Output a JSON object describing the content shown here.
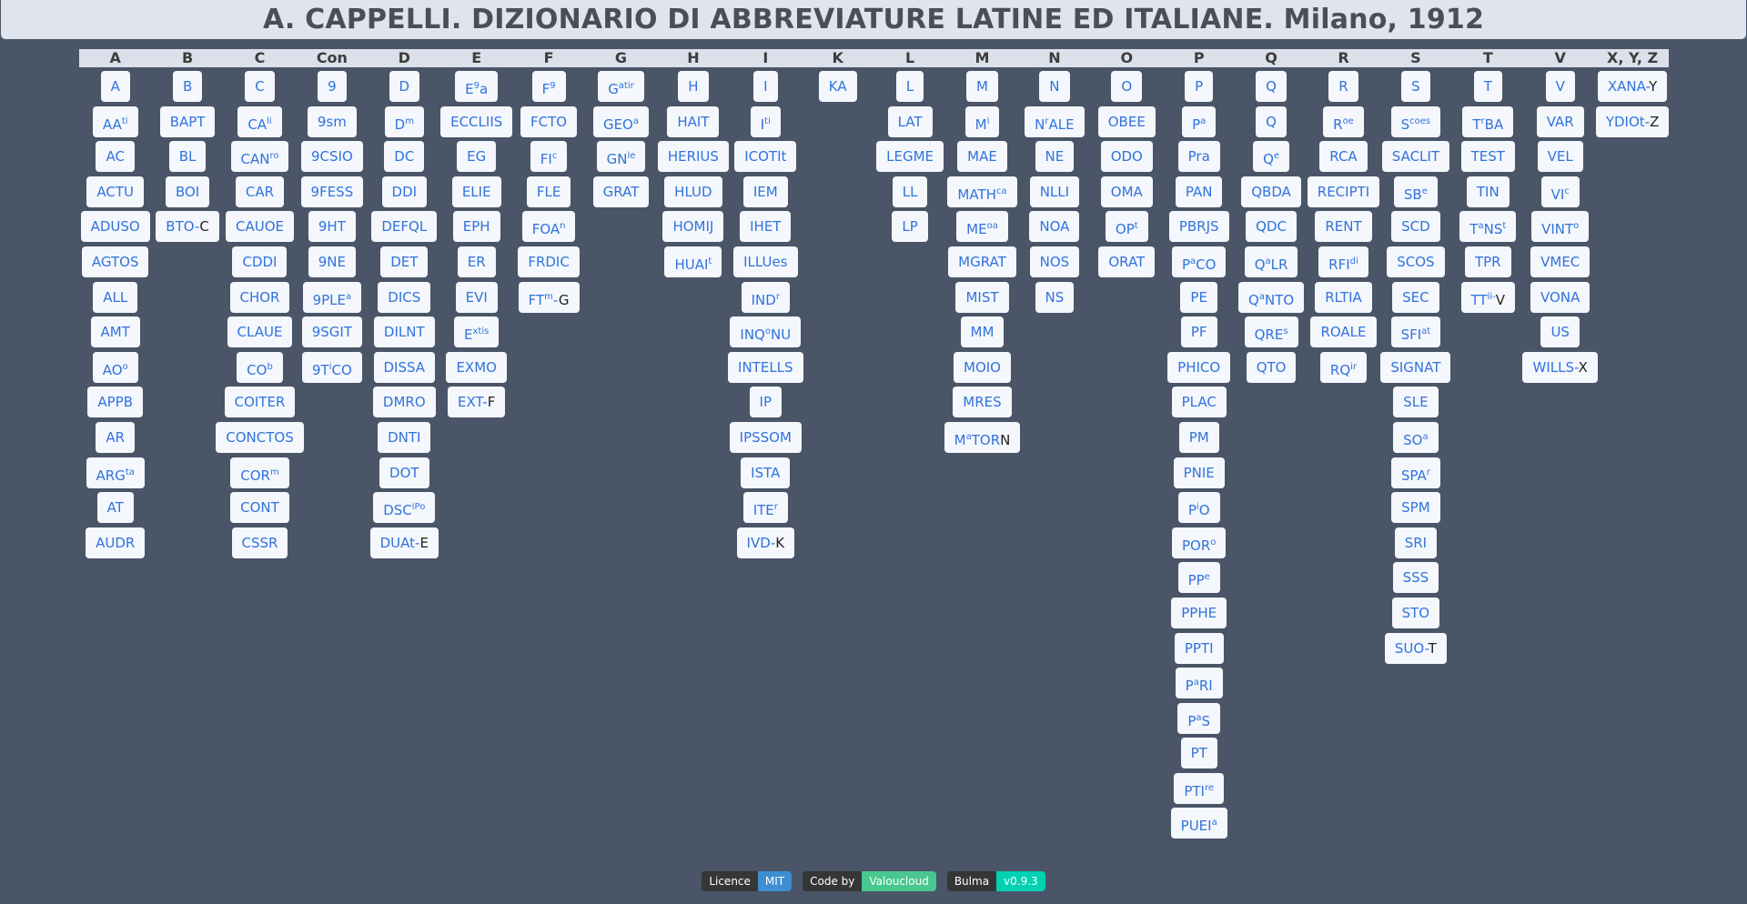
{
  "title": "A. CAPPELLI. DIZIONARIO DI ABBREVIATURE LATINE ED ITALIANE. Milano, 1912",
  "columns": [
    {
      "letter": "A",
      "items": [
        {
          "t": "A"
        },
        {
          "t": "AA",
          "sup": "ti"
        },
        {
          "t": "AC"
        },
        {
          "t": "ACTU"
        },
        {
          "t": "ADUSO"
        },
        {
          "t": "AGTOS"
        },
        {
          "t": "ALL"
        },
        {
          "t": "AMT"
        },
        {
          "t": "AO",
          "sup": "o"
        },
        {
          "t": "APPB"
        },
        {
          "t": "AR"
        },
        {
          "t": "ARG",
          "sup": "ta"
        },
        {
          "t": "AT"
        },
        {
          "t": "AUDR"
        }
      ]
    },
    {
      "letter": "B",
      "items": [
        {
          "t": "B"
        },
        {
          "t": "BAPT"
        },
        {
          "t": "BL"
        },
        {
          "t": "BOI"
        },
        {
          "t": "BTO-",
          "sfx": "C"
        }
      ]
    },
    {
      "letter": "C",
      "items": [
        {
          "t": "C"
        },
        {
          "t": "CA",
          "sup": "li"
        },
        {
          "t": "CAN",
          "sup": "ro"
        },
        {
          "t": "CAR"
        },
        {
          "t": "CAUOE"
        },
        {
          "t": "CDDI"
        },
        {
          "t": "CHOR"
        },
        {
          "t": "CLAUE"
        },
        {
          "t": "CO",
          "sup": "b"
        },
        {
          "t": "COITER"
        },
        {
          "t": "CONCTOS"
        },
        {
          "t": "COR",
          "sup": "m"
        },
        {
          "t": "CONT"
        },
        {
          "t": "CSSR"
        }
      ]
    },
    {
      "letter": "Con",
      "items": [
        {
          "t": "9"
        },
        {
          "t": "9sm"
        },
        {
          "t": "9CSIO"
        },
        {
          "t": "9FESS"
        },
        {
          "t": "9HT"
        },
        {
          "t": "9NE"
        },
        {
          "t": "9PLE",
          "sup": "a"
        },
        {
          "t": "9SGIT"
        },
        {
          "t": "9T",
          "sup": "i",
          "t2": "CO"
        }
      ]
    },
    {
      "letter": "D",
      "items": [
        {
          "t": "D"
        },
        {
          "t": "D",
          "sup": "m"
        },
        {
          "t": "DC"
        },
        {
          "t": "DDI"
        },
        {
          "t": "DEFQL"
        },
        {
          "t": "DET"
        },
        {
          "t": "DICS"
        },
        {
          "t": "DILNT"
        },
        {
          "t": "DISSA"
        },
        {
          "t": "DMRO"
        },
        {
          "t": "DNTI"
        },
        {
          "t": "DOT"
        },
        {
          "t": "DSC",
          "sup": "iPo"
        },
        {
          "t": "DUAt-",
          "sfx": "E"
        }
      ]
    },
    {
      "letter": "E",
      "items": [
        {
          "t": "E",
          "sup": "9",
          "t2": "a"
        },
        {
          "t": "ECCLIIS"
        },
        {
          "t": "EG"
        },
        {
          "t": "ELIE"
        },
        {
          "t": "EPH"
        },
        {
          "t": "ER"
        },
        {
          "t": "EVI"
        },
        {
          "t": "E",
          "sup": "xtis"
        },
        {
          "t": "EXMO"
        },
        {
          "t": "EXT-",
          "sfx": "F"
        }
      ]
    },
    {
      "letter": "F",
      "items": [
        {
          "t": "F",
          "sup": "9"
        },
        {
          "t": "FCTO"
        },
        {
          "t": "FI",
          "sup": "c"
        },
        {
          "t": "FLE"
        },
        {
          "t": "FOA",
          "sup": "n"
        },
        {
          "t": "FRDIC"
        },
        {
          "t": "FT",
          "sup": "m",
          "t2": "-",
          "sfx": "G"
        }
      ]
    },
    {
      "letter": "G",
      "items": [
        {
          "t": "G",
          "sup": "atir"
        },
        {
          "t": "GEO",
          "sup": "a"
        },
        {
          "t": "GN",
          "sup": "le"
        },
        {
          "t": "GRAT"
        }
      ]
    },
    {
      "letter": "H",
      "items": [
        {
          "t": "H"
        },
        {
          "t": "HAIT"
        },
        {
          "t": "HERIUS"
        },
        {
          "t": "HLUD"
        },
        {
          "t": "HOMIJ"
        },
        {
          "t": "HUAI",
          "sup": "t"
        }
      ]
    },
    {
      "letter": "I",
      "items": [
        {
          "t": "I"
        },
        {
          "t": "I",
          "sup": "ti"
        },
        {
          "t": "ICOTIt"
        },
        {
          "t": "IEM"
        },
        {
          "t": "IHET"
        },
        {
          "t": "ILLUes"
        },
        {
          "t": "IND",
          "sup": "r"
        },
        {
          "t": "INQ",
          "sup": "o",
          "t2": "NU"
        },
        {
          "t": "INTELLS"
        },
        {
          "t": "IP"
        },
        {
          "t": "IPSSOM"
        },
        {
          "t": "ISTA"
        },
        {
          "t": "ITE",
          "sup": "r"
        },
        {
          "t": "IVD-",
          "sfx": "K"
        }
      ]
    },
    {
      "letter": "K",
      "items": [
        {
          "t": "KA"
        }
      ]
    },
    {
      "letter": "L",
      "items": [
        {
          "t": "L"
        },
        {
          "t": "LAT"
        },
        {
          "t": "LEGME"
        },
        {
          "t": "LL"
        },
        {
          "t": "LP"
        }
      ]
    },
    {
      "letter": "M",
      "items": [
        {
          "t": "M"
        },
        {
          "t": "M",
          "sup": "i"
        },
        {
          "t": "MAE"
        },
        {
          "t": "MATH",
          "sup": "ca"
        },
        {
          "t": "ME",
          "sup": "oa"
        },
        {
          "t": "MGRAT"
        },
        {
          "t": "MIST"
        },
        {
          "t": "MM"
        },
        {
          "t": "MOIO"
        },
        {
          "t": "MRES"
        },
        {
          "t": "M",
          "sup": "a",
          "t2": "TOR",
          "sfx": "N"
        }
      ]
    },
    {
      "letter": "N",
      "items": [
        {
          "t": "N"
        },
        {
          "t": "N",
          "sup": "r",
          "t2": "ALE"
        },
        {
          "t": "NE"
        },
        {
          "t": "NLLI"
        },
        {
          "t": "NOA"
        },
        {
          "t": "NOS"
        },
        {
          "t": "NS"
        }
      ]
    },
    {
      "letter": "O",
      "items": [
        {
          "t": "O"
        },
        {
          "t": "OBEE"
        },
        {
          "t": "ODO"
        },
        {
          "t": "OMA"
        },
        {
          "t": "OP",
          "sup": "t"
        },
        {
          "t": "ORAT"
        }
      ]
    },
    {
      "letter": "P",
      "items": [
        {
          "t": "P"
        },
        {
          "t": "P",
          "sup": "a"
        },
        {
          "t": "Pra"
        },
        {
          "t": "PAN"
        },
        {
          "t": "PBRJS"
        },
        {
          "t": "P",
          "sup": "a",
          "t2": "CO"
        },
        {
          "t": "PE"
        },
        {
          "t": "PF"
        },
        {
          "t": "PHICO"
        },
        {
          "t": "PLAC"
        },
        {
          "t": "PM"
        },
        {
          "t": "PNIE"
        },
        {
          "t": "P",
          "sup": "i",
          "t2": "O"
        },
        {
          "t": "POR",
          "sup": "o"
        },
        {
          "t": "PP",
          "sup": "e"
        },
        {
          "t": "PPHE"
        },
        {
          "t": "PPTI"
        },
        {
          "t": "P",
          "sup": "a",
          "t2": "RI"
        },
        {
          "t": "P",
          "sup": "a",
          "t2": "S"
        },
        {
          "t": "PT"
        },
        {
          "t": "PTI",
          "sup": "re"
        },
        {
          "t": "PUEI",
          "sup": "a"
        }
      ]
    },
    {
      "letter": "Q",
      "items": [
        {
          "t": "Q"
        },
        {
          "t": "Q"
        },
        {
          "t": "Q",
          "sup": "e"
        },
        {
          "t": "QBDA"
        },
        {
          "t": "QDC"
        },
        {
          "t": "Q",
          "sup": "a",
          "t2": "LR"
        },
        {
          "t": "Q",
          "sup": "a",
          "t2": "NTO"
        },
        {
          "t": "QRE",
          "sup": "s"
        },
        {
          "t": "QTO"
        }
      ]
    },
    {
      "letter": "R",
      "items": [
        {
          "t": "R"
        },
        {
          "t": "R",
          "sup": "oe"
        },
        {
          "t": "RCA"
        },
        {
          "t": "RECIPTI"
        },
        {
          "t": "RENT"
        },
        {
          "t": "RFI",
          "sup": "di"
        },
        {
          "t": "RLTIA"
        },
        {
          "t": "ROALE"
        },
        {
          "t": "RQ",
          "sup": "ir"
        }
      ]
    },
    {
      "letter": "S",
      "items": [
        {
          "t": "S"
        },
        {
          "t": "S",
          "sup": "coes"
        },
        {
          "t": "SACLIT"
        },
        {
          "t": "SB",
          "sup": "e"
        },
        {
          "t": "SCD"
        },
        {
          "t": "SCOS"
        },
        {
          "t": "SEC"
        },
        {
          "t": "SFI",
          "sup": "at"
        },
        {
          "t": "SIGNAT"
        },
        {
          "t": "SLE"
        },
        {
          "t": "SO",
          "sup": "a"
        },
        {
          "t": "SPA",
          "sup": "r"
        },
        {
          "t": "SPM"
        },
        {
          "t": "SRI"
        },
        {
          "t": "SSS"
        },
        {
          "t": "STO"
        },
        {
          "t": "SUO-",
          "sfx": "T"
        }
      ]
    },
    {
      "letter": "T",
      "items": [
        {
          "t": "T"
        },
        {
          "t": "T",
          "sup": "r",
          "t2": "BA"
        },
        {
          "t": "TEST"
        },
        {
          "t": "TIN"
        },
        {
          "t": "T",
          "sup": "a",
          "t2": "NS",
          "sup2": "t"
        },
        {
          "t": "TPR"
        },
        {
          "t": "TT",
          "sup": "li-",
          "sfx": "V"
        }
      ]
    },
    {
      "letter": "V",
      "items": [
        {
          "t": "V"
        },
        {
          "t": "VAR"
        },
        {
          "t": "VEL"
        },
        {
          "t": "VI",
          "sup": "c"
        },
        {
          "t": "VINT",
          "sup": "o"
        },
        {
          "t": "VMEC"
        },
        {
          "t": "VONA"
        },
        {
          "t": "US"
        },
        {
          "t": "WILLS-",
          "sfx": "X"
        }
      ]
    },
    {
      "letter": "X, Y, Z",
      "items": [
        {
          "t": "XANA-",
          "sfx": "Y"
        },
        {
          "t": "YDIOt-",
          "sfx": "Z"
        }
      ]
    }
  ],
  "footer": [
    {
      "key": "Licence",
      "value": "MIT",
      "color": "#3e8ed0"
    },
    {
      "key": "Code by",
      "value": "Valoucloud",
      "color": "#48c78e"
    },
    {
      "key": "Bulma",
      "value": "v0.9.3",
      "color": "#00d1b2"
    }
  ]
}
